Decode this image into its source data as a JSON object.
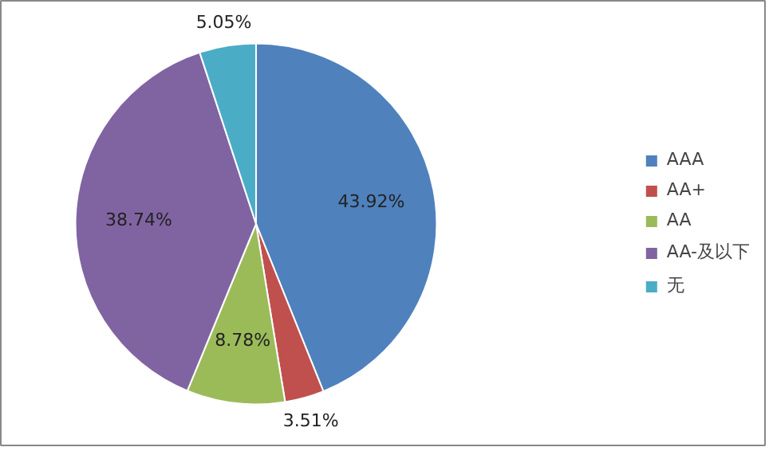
{
  "chart_data": {
    "type": "pie",
    "categories": [
      "AAA",
      "AA+",
      "AA",
      "AA-及以下",
      "无"
    ],
    "values": [
      43.92,
      3.51,
      8.78,
      38.74,
      5.05
    ],
    "colors": [
      "#4f81bd",
      "#c0504d",
      "#9bbb59",
      "#8064a2",
      "#4bacc6"
    ],
    "value_labels": [
      "43.92%",
      "3.51%",
      "8.78%",
      "38.74%",
      "5.05%"
    ],
    "legend": "right"
  }
}
